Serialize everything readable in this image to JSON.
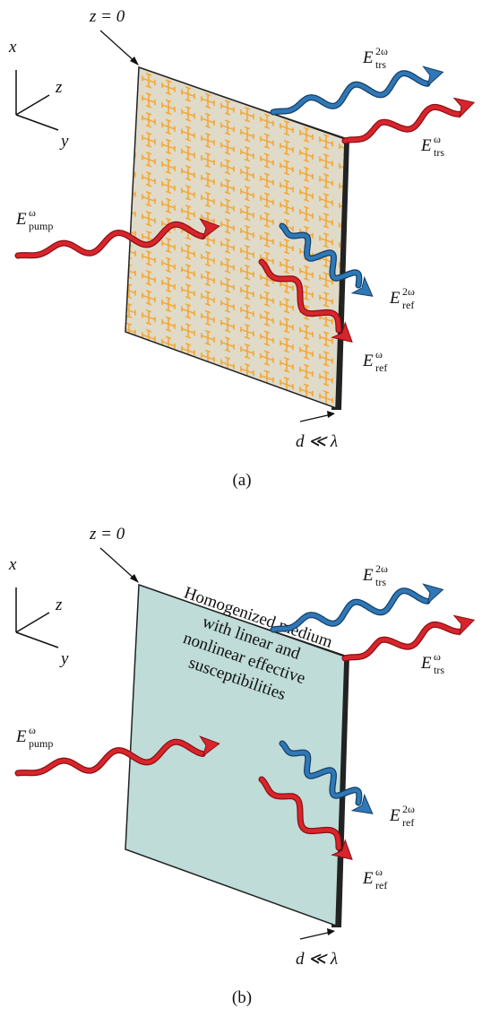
{
  "panels": [
    {
      "label": "(a)",
      "plane_label": "z = 0",
      "axes": {
        "x": "x",
        "y": "y",
        "z": "z"
      },
      "waves": {
        "pump": {
          "base": "E",
          "sup": "ω",
          "sub": "pump"
        },
        "trs_2w": {
          "base": "E",
          "sup": "2ω",
          "sub": "trs"
        },
        "trs_w": {
          "base": "E",
          "sup": "ω",
          "sub": "trs"
        },
        "ref_2w": {
          "base": "E",
          "sup": "2ω",
          "sub": "ref"
        },
        "ref_w": {
          "base": "E",
          "sup": "ω",
          "sub": "ref"
        }
      },
      "thickness_label": "d ≪ λ"
    },
    {
      "label": "(b)",
      "plane_label": "z = 0",
      "axes": {
        "x": "x",
        "y": "y",
        "z": "z"
      },
      "medium_text": [
        "Homogenized medium",
        "with linear and",
        "nonlinear effective",
        "susceptibilities"
      ],
      "waves": {
        "pump": {
          "base": "E",
          "sup": "ω",
          "sub": "pump"
        },
        "trs_2w": {
          "base": "E",
          "sup": "2ω",
          "sub": "trs"
        },
        "trs_w": {
          "base": "E",
          "sup": "ω",
          "sub": "trs"
        },
        "ref_2w": {
          "base": "E",
          "sup": "2ω",
          "sub": "ref"
        },
        "ref_w": {
          "base": "E",
          "sup": "ω",
          "sub": "ref"
        }
      },
      "thickness_label": "d ≪ λ"
    }
  ]
}
